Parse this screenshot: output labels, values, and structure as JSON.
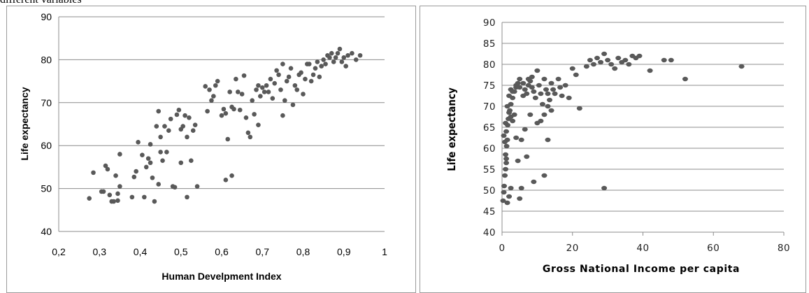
{
  "caption": "different variables",
  "chart_data": [
    {
      "type": "scatter",
      "title": "",
      "xlabel": "Human Develpment Index",
      "ylabel": "Life expectancy",
      "xlim": [
        0.2,
        1.0
      ],
      "ylim": [
        40,
        90
      ],
      "xticks": [
        "0,2",
        "0,3",
        "0,4",
        "0,5",
        "0,6",
        "0,7",
        "0,8",
        "0,9",
        "1"
      ],
      "yticks": [
        "40",
        "50",
        "60",
        "70",
        "80",
        "90"
      ],
      "grid": "horizontal",
      "colors": {
        "point": "#595959",
        "grid": "#8c8c8c"
      },
      "points": [
        [
          0.275,
          47.7
        ],
        [
          0.285,
          53.7
        ],
        [
          0.305,
          49.3
        ],
        [
          0.31,
          49.3
        ],
        [
          0.315,
          55.3
        ],
        [
          0.32,
          54.5
        ],
        [
          0.325,
          48.5
        ],
        [
          0.33,
          47.0
        ],
        [
          0.335,
          47.0
        ],
        [
          0.34,
          53.0
        ],
        [
          0.345,
          47.2
        ],
        [
          0.345,
          48.8
        ],
        [
          0.35,
          50.5
        ],
        [
          0.35,
          58.0
        ],
        [
          0.38,
          48.0
        ],
        [
          0.385,
          52.7
        ],
        [
          0.39,
          54.0
        ],
        [
          0.395,
          60.8
        ],
        [
          0.405,
          57.8
        ],
        [
          0.41,
          48.0
        ],
        [
          0.415,
          55.0
        ],
        [
          0.42,
          57.0
        ],
        [
          0.425,
          56.0
        ],
        [
          0.425,
          60.3
        ],
        [
          0.43,
          52.5
        ],
        [
          0.435,
          47.0
        ],
        [
          0.44,
          64.5
        ],
        [
          0.445,
          68.0
        ],
        [
          0.445,
          51.0
        ],
        [
          0.45,
          58.5
        ],
        [
          0.45,
          62.0
        ],
        [
          0.455,
          56.5
        ],
        [
          0.46,
          64.5
        ],
        [
          0.465,
          58.5
        ],
        [
          0.47,
          63.5
        ],
        [
          0.475,
          66.2
        ],
        [
          0.48,
          50.5
        ],
        [
          0.485,
          50.3
        ],
        [
          0.49,
          67.2
        ],
        [
          0.495,
          68.3
        ],
        [
          0.5,
          63.8
        ],
        [
          0.505,
          64.5
        ],
        [
          0.5,
          56.0
        ],
        [
          0.51,
          67.0
        ],
        [
          0.515,
          48.0
        ],
        [
          0.515,
          62.0
        ],
        [
          0.52,
          66.5
        ],
        [
          0.525,
          56.5
        ],
        [
          0.53,
          63.5
        ],
        [
          0.535,
          64.8
        ],
        [
          0.54,
          50.5
        ],
        [
          0.56,
          73.8
        ],
        [
          0.565,
          68.0
        ],
        [
          0.57,
          73.0
        ],
        [
          0.575,
          70.5
        ],
        [
          0.58,
          71.5
        ],
        [
          0.585,
          74.0
        ],
        [
          0.59,
          75.0
        ],
        [
          0.6,
          67.0
        ],
        [
          0.605,
          68.5
        ],
        [
          0.61,
          67.5
        ],
        [
          0.61,
          52.0
        ],
        [
          0.615,
          61.5
        ],
        [
          0.62,
          72.5
        ],
        [
          0.625,
          69.0
        ],
        [
          0.625,
          53.0
        ],
        [
          0.63,
          68.5
        ],
        [
          0.635,
          75.5
        ],
        [
          0.64,
          72.5
        ],
        [
          0.645,
          68.3
        ],
        [
          0.65,
          72.0
        ],
        [
          0.655,
          76.3
        ],
        [
          0.66,
          66.5
        ],
        [
          0.665,
          63.0
        ],
        [
          0.67,
          62.0
        ],
        [
          0.675,
          70.5
        ],
        [
          0.68,
          67.3
        ],
        [
          0.685,
          73.0
        ],
        [
          0.69,
          74.0
        ],
        [
          0.69,
          64.8
        ],
        [
          0.695,
          71.5
        ],
        [
          0.7,
          73.5
        ],
        [
          0.705,
          72.5
        ],
        [
          0.71,
          74.0
        ],
        [
          0.715,
          72.5
        ],
        [
          0.72,
          75.5
        ],
        [
          0.725,
          71.0
        ],
        [
          0.73,
          74.5
        ],
        [
          0.735,
          77.5
        ],
        [
          0.74,
          76.5
        ],
        [
          0.745,
          73.0
        ],
        [
          0.75,
          79.0
        ],
        [
          0.75,
          67.0
        ],
        [
          0.755,
          70.5
        ],
        [
          0.76,
          75.0
        ],
        [
          0.765,
          76.0
        ],
        [
          0.77,
          78.0
        ],
        [
          0.775,
          69.5
        ],
        [
          0.78,
          74.0
        ],
        [
          0.785,
          73.0
        ],
        [
          0.79,
          76.5
        ],
        [
          0.795,
          77.0
        ],
        [
          0.8,
          72.0
        ],
        [
          0.805,
          75.5
        ],
        [
          0.81,
          79.0
        ],
        [
          0.815,
          79.0
        ],
        [
          0.82,
          75.0
        ],
        [
          0.825,
          76.5
        ],
        [
          0.83,
          78.0
        ],
        [
          0.835,
          79.5
        ],
        [
          0.84,
          76.0
        ],
        [
          0.845,
          78.5
        ],
        [
          0.85,
          80.0
        ],
        [
          0.855,
          79.0
        ],
        [
          0.86,
          81.0
        ],
        [
          0.865,
          80.5
        ],
        [
          0.87,
          81.5
        ],
        [
          0.875,
          79.5
        ],
        [
          0.88,
          80.5
        ],
        [
          0.885,
          81.5
        ],
        [
          0.89,
          82.5
        ],
        [
          0.895,
          79.5
        ],
        [
          0.9,
          80.5
        ],
        [
          0.905,
          78.5
        ],
        [
          0.91,
          81.0
        ],
        [
          0.92,
          81.5
        ],
        [
          0.93,
          80.0
        ],
        [
          0.94,
          81.0
        ]
      ]
    },
    {
      "type": "scatter",
      "title": "",
      "xlabel": "Gross National Income per capita",
      "ylabel": "Life expectancy",
      "xlim": [
        0,
        80
      ],
      "ylim": [
        40,
        90
      ],
      "xticks": [
        "0",
        "20",
        "40",
        "60",
        "80"
      ],
      "yticks": [
        "40",
        "45",
        "50",
        "55",
        "60",
        "65",
        "70",
        "75",
        "80",
        "85",
        "90"
      ],
      "grid": "horizontal",
      "colors": {
        "point": "#595959",
        "grid": "#8c8c8c"
      },
      "points": [
        [
          0.3,
          47.5
        ],
        [
          0.5,
          49.5
        ],
        [
          0.6,
          51.0
        ],
        [
          0.8,
          53.5
        ],
        [
          1.0,
          55.0
        ],
        [
          1.2,
          56.5
        ],
        [
          1.0,
          58.5
        ],
        [
          1.3,
          60.5
        ],
        [
          1.5,
          62.0
        ],
        [
          1.2,
          64.0
        ],
        [
          1.6,
          65.5
        ],
        [
          1.8,
          67.0
        ],
        [
          2.0,
          68.5
        ],
        [
          1.5,
          47.0
        ],
        [
          2.0,
          48.5
        ],
        [
          2.5,
          50.5
        ],
        [
          1.2,
          57.5
        ],
        [
          0.8,
          61.5
        ],
        [
          0.5,
          63.0
        ],
        [
          1.0,
          66.0
        ],
        [
          2.2,
          69.0
        ],
        [
          2.5,
          70.5
        ],
        [
          3.0,
          72.0
        ],
        [
          3.5,
          73.5
        ],
        [
          4.0,
          74.5
        ],
        [
          4.5,
          75.5
        ],
        [
          5.0,
          76.5
        ],
        [
          3.0,
          66.5
        ],
        [
          3.5,
          68.0
        ],
        [
          4.0,
          62.5
        ],
        [
          4.5,
          57.0
        ],
        [
          5.5,
          50.5
        ],
        [
          5.0,
          48.0
        ],
        [
          6.0,
          72.5
        ],
        [
          6.5,
          74.0
        ],
        [
          7.0,
          73.0
        ],
        [
          7.5,
          75.0
        ],
        [
          8.0,
          76.0
        ],
        [
          8.5,
          74.5
        ],
        [
          9.0,
          73.5
        ],
        [
          9.5,
          72.0
        ],
        [
          10.0,
          78.5
        ],
        [
          10.5,
          75.0
        ],
        [
          11.0,
          73.0
        ],
        [
          11.5,
          70.5
        ],
        [
          12.0,
          76.5
        ],
        [
          12.5,
          74.0
        ],
        [
          13.0,
          73.0
        ],
        [
          13.5,
          71.5
        ],
        [
          14.0,
          75.5
        ],
        [
          14.5,
          74.0
        ],
        [
          15.0,
          73.0
        ],
        [
          16.0,
          76.5
        ],
        [
          16.5,
          74.5
        ],
        [
          17.0,
          72.5
        ],
        [
          18.0,
          75.0
        ],
        [
          19.0,
          72.0
        ],
        [
          20.0,
          79.0
        ],
        [
          21.0,
          77.5
        ],
        [
          22.0,
          69.5
        ],
        [
          24.0,
          79.5
        ],
        [
          25.0,
          81.0
        ],
        [
          26.0,
          80.0
        ],
        [
          27.0,
          81.5
        ],
        [
          28.0,
          80.5
        ],
        [
          29.0,
          82.5
        ],
        [
          30.0,
          81.0
        ],
        [
          31.0,
          80.0
        ],
        [
          32.0,
          79.0
        ],
        [
          33.0,
          81.5
        ],
        [
          34.0,
          80.5
        ],
        [
          35.0,
          81.0
        ],
        [
          36.0,
          80.0
        ],
        [
          37.0,
          82.0
        ],
        [
          38.0,
          81.5
        ],
        [
          39.0,
          82.0
        ],
        [
          42.0,
          78.5
        ],
        [
          46.0,
          81.0
        ],
        [
          48.0,
          81.0
        ],
        [
          52.0,
          76.5
        ],
        [
          68.0,
          79.5
        ],
        [
          29.0,
          50.5
        ],
        [
          12.0,
          53.5
        ],
        [
          13.0,
          62.0
        ],
        [
          9.0,
          52.0
        ],
        [
          6.5,
          64.5
        ],
        [
          7.0,
          58.0
        ],
        [
          5.5,
          62.0
        ],
        [
          8.0,
          68.0
        ],
        [
          10.0,
          66.0
        ],
        [
          11.0,
          66.5
        ],
        [
          12.0,
          68.0
        ],
        [
          13.0,
          70.0
        ],
        [
          14.0,
          69.0
        ],
        [
          3.0,
          73.5
        ],
        [
          2.5,
          74.0
        ],
        [
          4.0,
          75.0
        ],
        [
          5.0,
          74.5
        ],
        [
          6.0,
          75.5
        ],
        [
          7.5,
          76.5
        ],
        [
          8.5,
          77.0
        ],
        [
          2.0,
          72.5
        ],
        [
          1.5,
          70.0
        ],
        [
          2.5,
          67.5
        ]
      ]
    }
  ]
}
